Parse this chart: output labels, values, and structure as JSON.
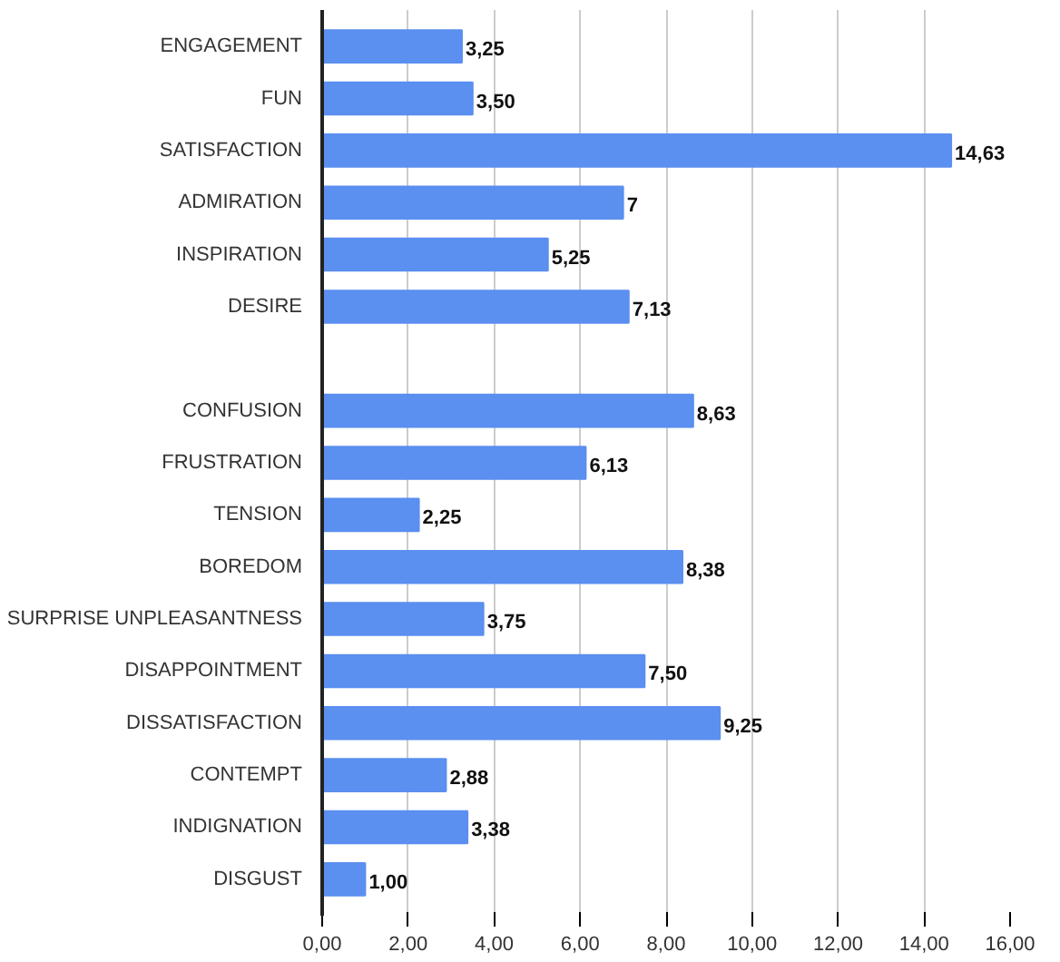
{
  "chart_data": {
    "type": "bar",
    "orientation": "horizontal",
    "categories": [
      "ENGAGEMENT",
      "FUN",
      "SATISFACTION",
      "ADMIRATION",
      "INSPIRATION",
      "DESIRE",
      null,
      "CONFUSION",
      "FRUSTRATION",
      "TENSION",
      "BOREDOM",
      "SURPRISE UNPLEASANTNESS",
      "DISAPPOINTMENT",
      "DISSATISFACTION",
      "CONTEMPT",
      "INDIGNATION",
      "DISGUST"
    ],
    "values": [
      3.25,
      3.5,
      14.63,
      7,
      5.25,
      7.13,
      null,
      8.63,
      6.13,
      2.25,
      8.38,
      3.75,
      7.5,
      9.25,
      2.88,
      3.38,
      1.0
    ],
    "value_labels": [
      "3,25",
      "3,50",
      "14,63",
      "7",
      "5,25",
      "7,13",
      null,
      "8,63",
      "6,13",
      "2,25",
      "8,38",
      "3,75",
      "7,50",
      "9,25",
      "2,88",
      "3,38",
      "1,00"
    ],
    "color": "#5b8ff0",
    "xlim": [
      0,
      16
    ],
    "xticks": [
      {
        "value": 0,
        "label": "0,00"
      },
      {
        "value": 2,
        "label": "2,00"
      },
      {
        "value": 4,
        "label": "4,00"
      },
      {
        "value": 6,
        "label": "6,00"
      },
      {
        "value": 8,
        "label": "8,00"
      },
      {
        "value": 10,
        "label": "10,00"
      },
      {
        "value": 12,
        "label": "12,00"
      },
      {
        "value": 14,
        "label": "14,00"
      },
      {
        "value": 16,
        "label": "16,00"
      }
    ],
    "grid": "x"
  }
}
